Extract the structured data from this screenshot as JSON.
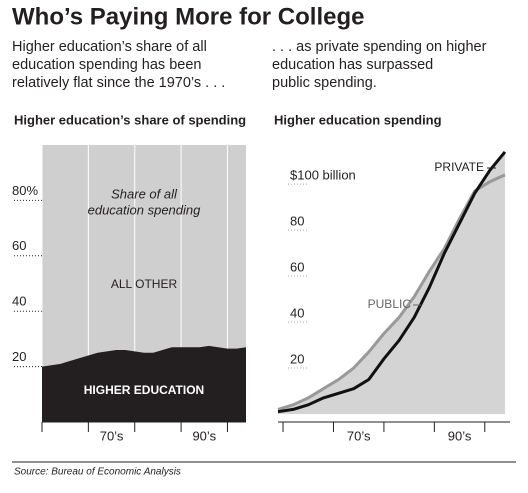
{
  "title": "Who’s Paying More for College",
  "source": "Source: Bureau of Economic Analysis",
  "chart_data": [
    {
      "type": "area",
      "subtitle": [
        "Higher education’s share of all",
        "education spending has been",
        "relatively flat since the 1970’s . . ."
      ],
      "title": "Higher education’s share of spending",
      "x": [
        1960,
        1962,
        1964,
        1966,
        1968,
        1970,
        1972,
        1974,
        1976,
        1978,
        1980,
        1982,
        1984,
        1986,
        1988,
        1990,
        1992,
        1994,
        1996,
        1998,
        2000,
        2002,
        2004
      ],
      "series": [
        {
          "name": "HIGHER EDUCATION",
          "color": "#231f20",
          "values": [
            20,
            20.5,
            21,
            22,
            23,
            24,
            25,
            25.5,
            26,
            26,
            25.5,
            25,
            25,
            26,
            27,
            27,
            27,
            27,
            27.5,
            27,
            26.5,
            26.5,
            27
          ]
        }
      ],
      "background_label": "ALL OTHER",
      "background_color": "#cfcfcf",
      "annotation": [
        "Share of all",
        "education spending"
      ],
      "xlim": [
        1960,
        2004
      ],
      "xticks": [
        1960,
        1970,
        1980,
        1990,
        2000
      ],
      "xtick_labels": [
        {
          "value": 1975,
          "label": "70’s"
        },
        {
          "value": 1995,
          "label": "90’s"
        }
      ],
      "ylim": [
        0,
        100
      ],
      "yticks": [
        20,
        40,
        60,
        {
          "value": 80,
          "label": "80%"
        }
      ]
    },
    {
      "type": "line",
      "subtitle": [
        ". . . as private spending on higher",
        "education has surpassed",
        "public spending."
      ],
      "title": "Higher education spending",
      "x": [
        1959,
        1962,
        1965,
        1968,
        1971,
        1974,
        1977,
        1980,
        1983,
        1986,
        1989,
        1992,
        1995,
        1998,
        2001,
        2004
      ],
      "series": [
        {
          "name": "PUBLIC",
          "color": "#999999",
          "values": [
            2,
            4,
            7,
            11,
            15,
            20,
            27,
            35,
            42,
            51,
            62,
            72,
            85,
            97,
            101,
            104
          ]
        },
        {
          "name": "PRIVATE",
          "color": "#111111",
          "values": [
            1,
            2,
            4,
            7,
            9,
            11,
            15,
            24,
            32,
            42,
            55,
            70,
            83,
            96,
            106,
            114
          ]
        }
      ],
      "fill_color": "#d4d4d4",
      "xlim": [
        1959,
        2005
      ],
      "xticks": [
        1960,
        1970,
        1980,
        1990,
        2000
      ],
      "xtick_labels": [
        {
          "value": 1975,
          "label": "70’s"
        },
        {
          "value": 1995,
          "label": "90’s"
        }
      ],
      "ylim": [
        0,
        117
      ],
      "yticks": [
        20,
        40,
        60,
        80,
        {
          "value": 100,
          "label": "$100 billion"
        }
      ]
    }
  ]
}
